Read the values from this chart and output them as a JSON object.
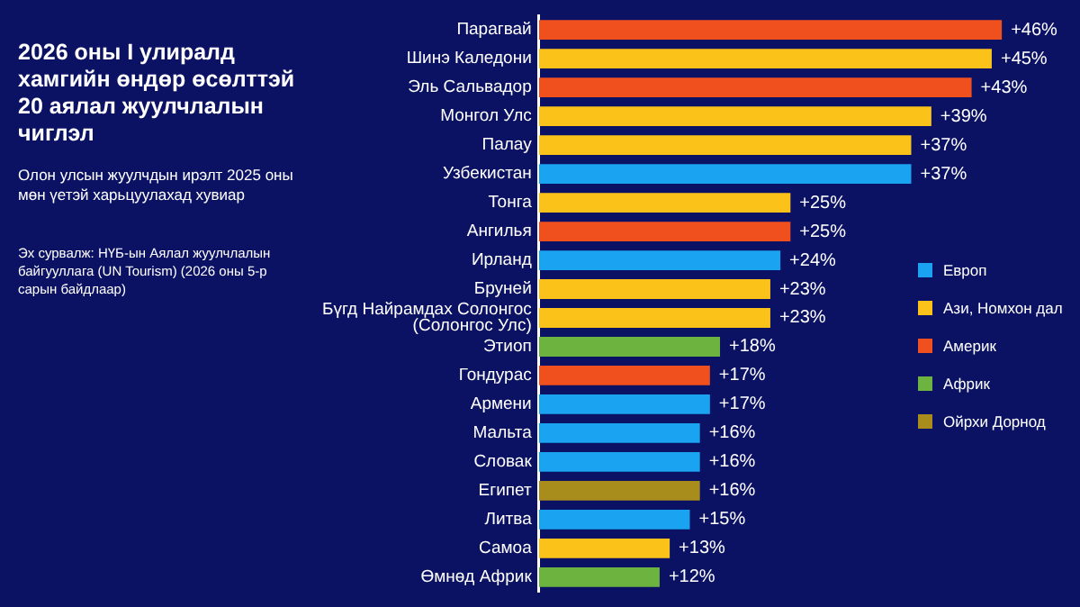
{
  "chart_data": {
    "type": "bar",
    "orientation": "horizontal",
    "title": "2026 оны I улиралд хамгийн өндөр өсөлттэй 20 аялал жуулчлалын чиглэл",
    "subtitle": "Олон улсын жуулчдын ирэлт 2025 оны мөн үетэй харьцуулахад хувиар",
    "annotations": [
      "Эх сурвалж: НҮБ-ын Аялал жуулчлалын байгууллага (UN Tourism) (2026 оны 5-р сарын байдлаар)"
    ],
    "categories": [
      "Парагвай",
      "Шинэ Каледони",
      "Эль Сальвадор",
      "Монгол Улс",
      "Палау",
      "Узбекистан",
      "Тонга",
      "Ангилья",
      "Ирланд",
      "Бруней",
      "Бүгд Найрамдах Солонгос (Солонгос Улс)",
      "Этиоп",
      "Гондурас",
      "Армени",
      "Мальта",
      "Словак",
      "Египет",
      "Литва",
      "Самоа",
      "Өмнөд Африк"
    ],
    "series": [
      {
        "name": "Европ",
        "color": "#1aa3f0",
        "values": [
          null,
          null,
          null,
          null,
          null,
          37,
          null,
          null,
          24,
          null,
          null,
          null,
          null,
          17,
          16,
          16,
          null,
          15,
          null,
          null
        ],
        "value_labels": [
          null,
          null,
          null,
          null,
          null,
          "+37%",
          null,
          null,
          "+24%",
          null,
          null,
          null,
          null,
          "+17%",
          "+16%",
          "+16%",
          null,
          "+15%",
          null,
          null
        ]
      },
      {
        "name": "Ази, Номхон дал",
        "color": "#fbc21a",
        "values": [
          null,
          45,
          null,
          39,
          37,
          null,
          25,
          null,
          null,
          23,
          23,
          null,
          null,
          null,
          null,
          null,
          null,
          null,
          13,
          null
        ],
        "value_labels": [
          null,
          "+45%",
          null,
          "+39%",
          "+37%",
          null,
          "+25%",
          null,
          null,
          "+23%",
          "+23%",
          null,
          null,
          null,
          null,
          null,
          null,
          null,
          "+13%",
          null
        ]
      },
      {
        "name": "Америк",
        "color": "#f0501e",
        "values": [
          46,
          null,
          43,
          null,
          null,
          null,
          null,
          25,
          null,
          null,
          null,
          null,
          17,
          null,
          null,
          null,
          null,
          null,
          null,
          null
        ],
        "value_labels": [
          "+46%",
          null,
          "+43%",
          null,
          null,
          null,
          null,
          "+25%",
          null,
          null,
          null,
          null,
          "+17%",
          null,
          null,
          null,
          null,
          null,
          null,
          null
        ]
      },
      {
        "name": "Африк",
        "color": "#6db33f",
        "values": [
          null,
          null,
          null,
          null,
          null,
          null,
          null,
          null,
          null,
          null,
          null,
          18,
          null,
          null,
          null,
          null,
          null,
          null,
          null,
          12
        ],
        "value_labels": [
          null,
          null,
          null,
          null,
          null,
          null,
          null,
          null,
          null,
          null,
          null,
          "+18%",
          null,
          null,
          null,
          null,
          null,
          null,
          null,
          "+12%"
        ]
      },
      {
        "name": "Ойрхи Дорнод",
        "color": "#a88c1c",
        "values": [
          null,
          null,
          null,
          null,
          null,
          null,
          null,
          null,
          null,
          null,
          null,
          null,
          null,
          null,
          null,
          null,
          16,
          null,
          null,
          null
        ],
        "value_labels": [
          null,
          null,
          null,
          null,
          null,
          null,
          null,
          null,
          null,
          null,
          null,
          null,
          null,
          null,
          null,
          null,
          "+16%",
          null,
          null,
          null
        ]
      }
    ],
    "legend": "right",
    "grid": false
  }
}
